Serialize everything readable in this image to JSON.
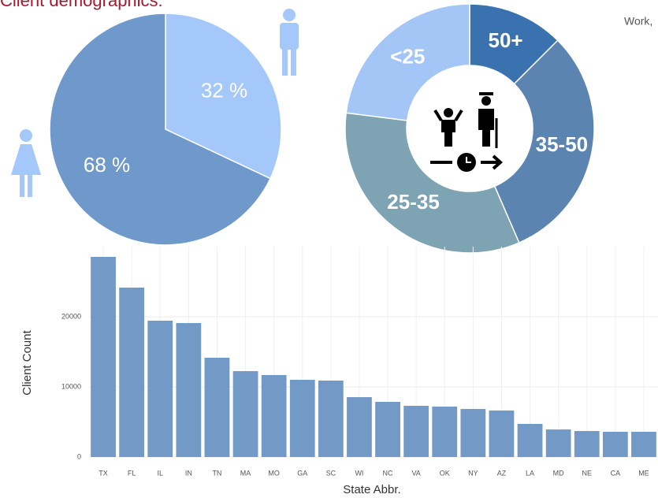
{
  "header": {
    "title": "Client demographics:",
    "note": "Work,"
  },
  "chart_data": [
    {
      "type": "pie",
      "values": [
        32,
        68
      ],
      "value_labels": [
        "32 %",
        "68 %"
      ],
      "colors": [
        "#a5c8fa",
        "#7099cb"
      ]
    },
    {
      "type": "donut",
      "categories": [
        "50+",
        "35-50",
        "25-35",
        "<25"
      ],
      "values": [
        12.5,
        31,
        33.5,
        23
      ],
      "colors": [
        "#3a72b0",
        "#5b84b1",
        "#7ea3b3",
        "#a3c6f7"
      ]
    },
    {
      "type": "bar",
      "x_label": "State Abbr.",
      "y_label": "Client Count",
      "categories": [
        "TX",
        "FL",
        "IL",
        "IN",
        "TN",
        "MA",
        "MO",
        "GA",
        "SC",
        "WI",
        "NC",
        "VA",
        "OK",
        "NY",
        "AZ",
        "LA",
        "MD",
        "NE",
        "CA",
        "ME"
      ],
      "values": [
        28540,
        24160,
        19440,
        19100,
        14160,
        12250,
        11690,
        11010,
        10900,
        8540,
        7870,
        7300,
        7190,
        6850,
        6630,
        4720,
        3930,
        3710,
        3600,
        3600
      ],
      "color": "#7399c6",
      "ylim": [
        0,
        30000
      ],
      "yticks": [
        0,
        10000,
        20000
      ],
      "grid": true
    }
  ]
}
